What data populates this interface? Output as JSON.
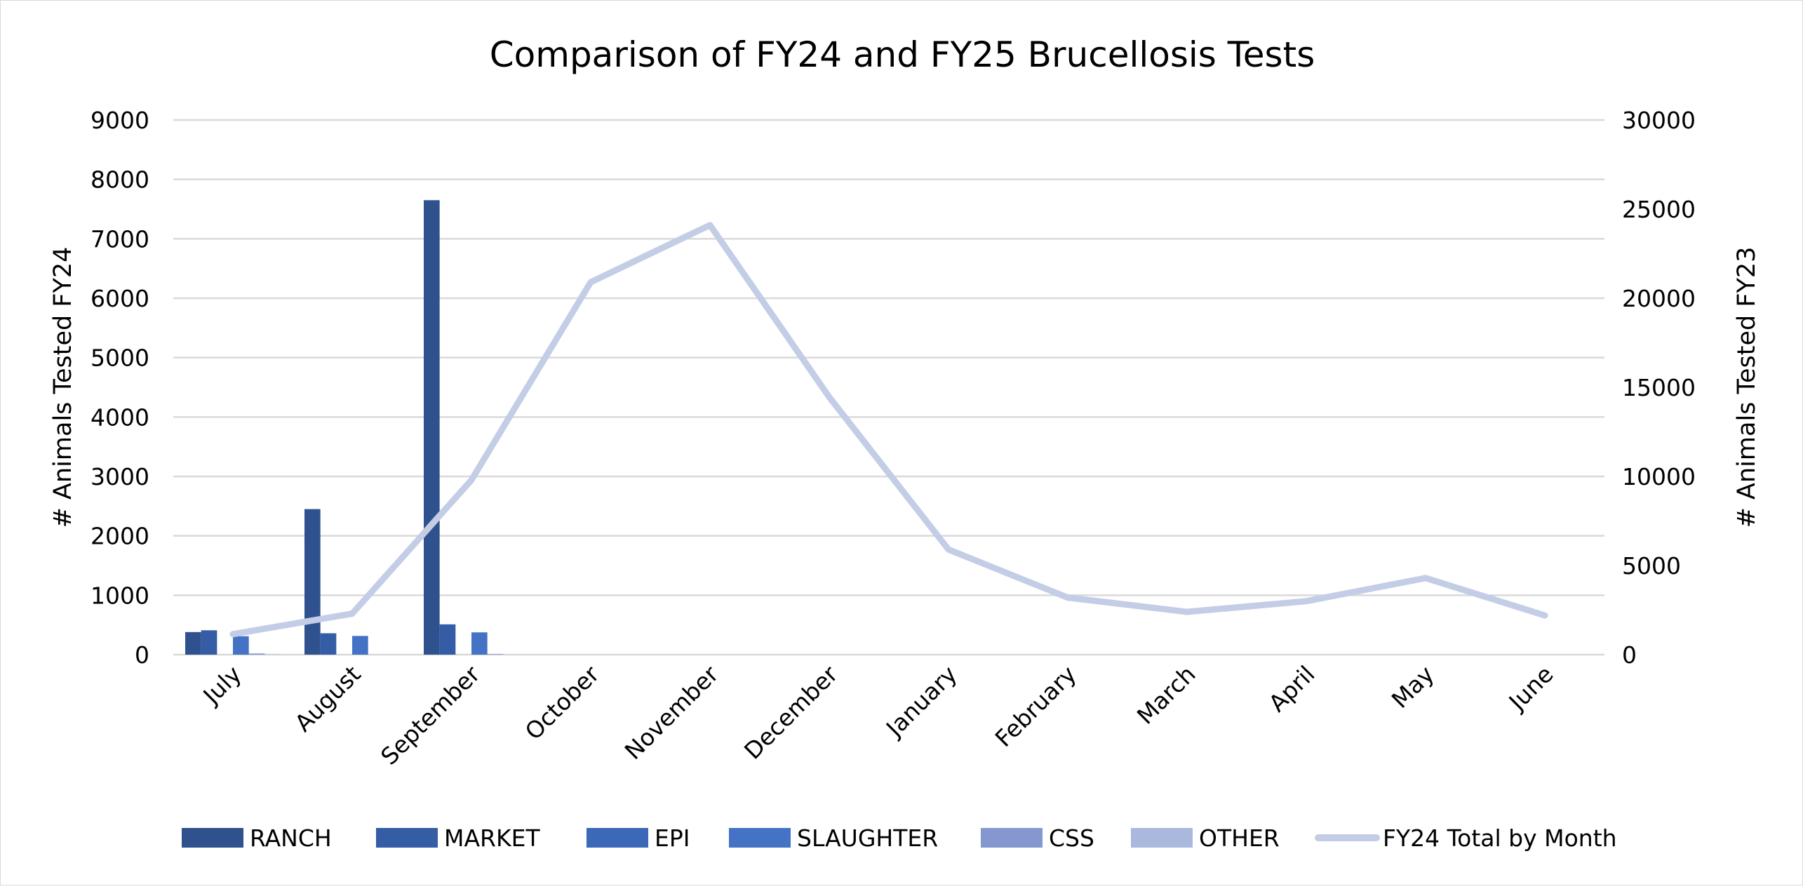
{
  "chart_data": {
    "type": "bar+line",
    "title": "Comparison of FY24 and FY25 Brucellosis Tests",
    "ylabel_left": "# Animals Tested FY24",
    "ylabel_right": "# Animals Tested FY23",
    "ylim_left": [
      0,
      9000
    ],
    "ylim_right": [
      0,
      30000
    ],
    "yticks_left": [
      "0",
      "1000",
      "2000",
      "3000",
      "4000",
      "5000",
      "6000",
      "7000",
      "8000",
      "9000"
    ],
    "yticks_right": [
      "0",
      "5000",
      "10000",
      "15000",
      "20000",
      "25000",
      "30000"
    ],
    "grid": true,
    "legend_position": "bottom",
    "categories": [
      "July",
      "August",
      "September",
      "October",
      "November",
      "December",
      "January",
      "February",
      "March",
      "April",
      "May",
      "June"
    ],
    "series": [
      {
        "name": "RANCH",
        "type": "bar",
        "axis": "left",
        "color": "#2F528F",
        "values": [
          380,
          2450,
          7650,
          null,
          null,
          null,
          null,
          null,
          null,
          null,
          null,
          null
        ]
      },
      {
        "name": "MARKET",
        "type": "bar",
        "axis": "left",
        "color": "#345DA5",
        "values": [
          410,
          360,
          510,
          null,
          null,
          null,
          null,
          null,
          null,
          null,
          null,
          null
        ]
      },
      {
        "name": "EPI",
        "type": "bar",
        "axis": "left",
        "color": "#3C68B8",
        "values": [
          0,
          0,
          0,
          null,
          null,
          null,
          null,
          null,
          null,
          null,
          null,
          null
        ]
      },
      {
        "name": "SLAUGHTER",
        "type": "bar",
        "axis": "left",
        "color": "#4472C4",
        "values": [
          310,
          315,
          375,
          null,
          null,
          null,
          null,
          null,
          null,
          null,
          null,
          null
        ]
      },
      {
        "name": "CSS",
        "type": "bar",
        "axis": "left",
        "color": "#8497CF",
        "values": [
          20,
          0,
          10,
          null,
          null,
          null,
          null,
          null,
          null,
          null,
          null,
          null
        ]
      },
      {
        "name": "OTHER",
        "type": "bar",
        "axis": "left",
        "color": "#ABB8DD",
        "values": [
          5,
          0,
          0,
          null,
          null,
          null,
          null,
          null,
          null,
          null,
          null,
          null
        ]
      },
      {
        "name": "FY24 Total by Month",
        "type": "line",
        "axis": "right",
        "color": "#C3CDE6",
        "values": [
          1150,
          2300,
          9800,
          20900,
          24100,
          14450,
          5900,
          3200,
          2400,
          3000,
          4300,
          2200
        ]
      }
    ]
  }
}
